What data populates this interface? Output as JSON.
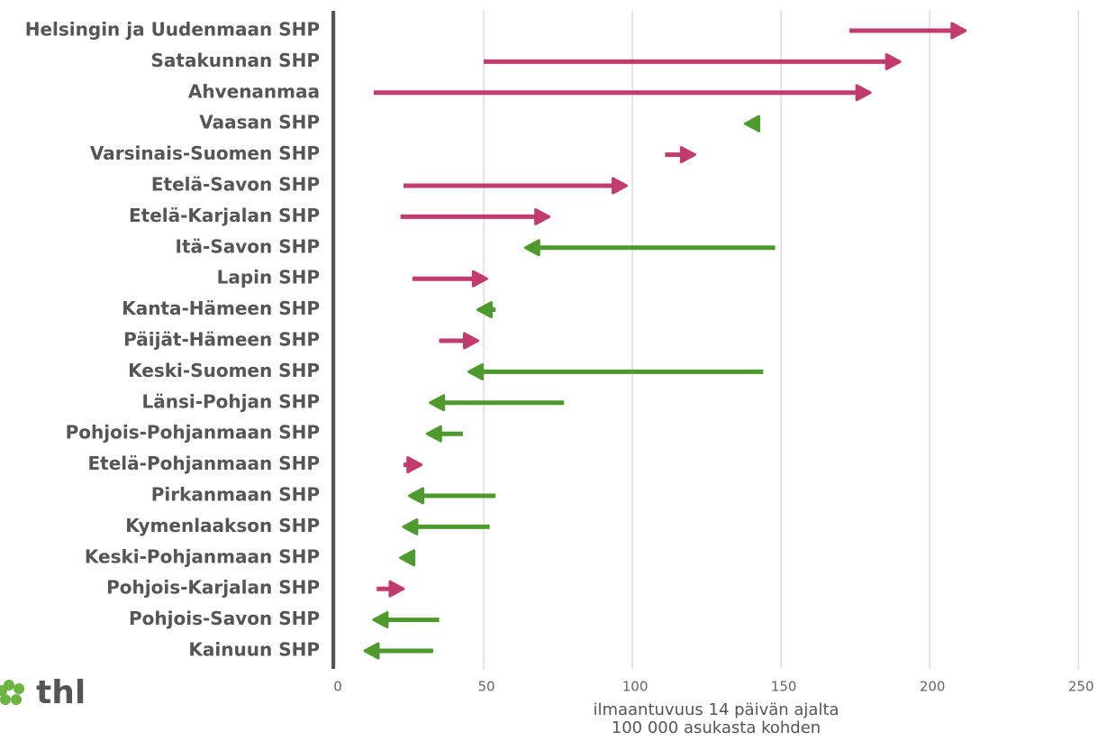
{
  "chart_data": {
    "type": "arrow",
    "categories": [
      "Helsingin ja Uudenmaan SHP",
      "Satakunnan SHP",
      "Ahvenanmaa",
      "Vaasan SHP",
      "Varsinais-Suomen SHP",
      "Etelä-Savon SHP",
      "Etelä-Karjalan SHP",
      "Itä-Savon SHP",
      "Lapin SHP",
      "Kanta-Hämeen SHP",
      "Päijät-Hämeen SHP",
      "Keski-Suomen SHP",
      "Länsi-Pohjan SHP",
      "Pohjois-Pohjanmaan SHP",
      "Etelä-Pohjanmaan SHP",
      "Pirkanmaan SHP",
      "Kymenlaakson SHP",
      "Keski-Pohjanmaan SHP",
      "Pohjois-Karjalan SHP",
      "Pohjois-Savon SHP",
      "Kainuun SHP"
    ],
    "start": [
      173,
      50,
      13,
      143,
      111,
      23,
      22,
      148,
      26,
      54,
      35,
      144,
      77,
      43,
      23,
      54,
      52,
      27,
      14,
      35,
      33
    ],
    "end": [
      212,
      190,
      180,
      138,
      121,
      98,
      72,
      64,
      51,
      48,
      48,
      45,
      32,
      31,
      29,
      25,
      23,
      22,
      23,
      13,
      10
    ],
    "colors": {
      "increase": "#c23b6e",
      "decrease": "#4f9a2f"
    },
    "xlim": [
      0,
      256
    ],
    "xticks": [
      0,
      50,
      100,
      150,
      200,
      250
    ],
    "grid": true,
    "x_label": [
      "ilmaantuvuus 14 päivän ajalta",
      "100 000 asukasta kohden"
    ]
  },
  "logo": "thl"
}
